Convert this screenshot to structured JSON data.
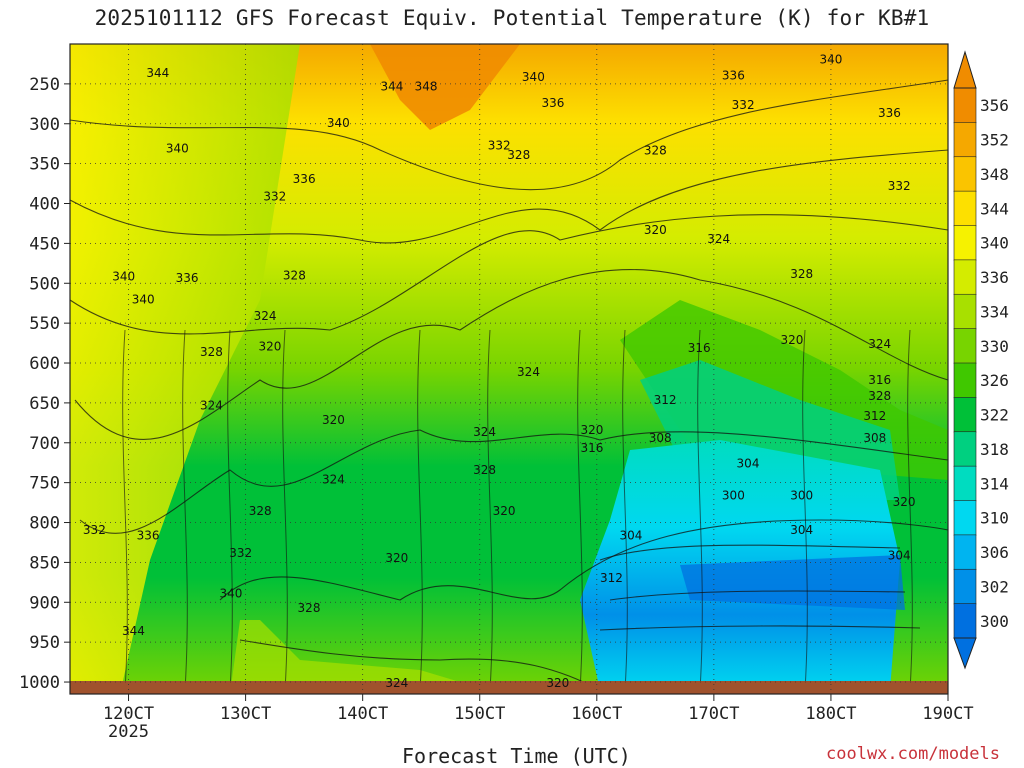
{
  "chart_data": {
    "type": "heatmap",
    "title": "2025101112 GFS Forecast Equiv. Potential Temperature (K) for KB#1",
    "xlabel": "Forecast Time (UTC)",
    "ylabel": "",
    "credit": "coolwx.com/models",
    "x_ticks": [
      {
        "label": "120CT",
        "sub": "2025",
        "hour": 0
      },
      {
        "label": "130CT",
        "sub": "",
        "hour": 24
      },
      {
        "label": "140CT",
        "sub": "",
        "hour": 48
      },
      {
        "label": "150CT",
        "sub": "",
        "hour": 72
      },
      {
        "label": "160CT",
        "sub": "",
        "hour": 96
      },
      {
        "label": "170CT",
        "sub": "",
        "hour": 120
      },
      {
        "label": "180CT",
        "sub": "",
        "hour": 144
      },
      {
        "label": "190CT",
        "sub": "",
        "hour": 168
      }
    ],
    "x_range_hours": [
      -12,
      168
    ],
    "y_ticks": [
      250,
      300,
      350,
      400,
      450,
      500,
      550,
      600,
      650,
      700,
      750,
      800,
      850,
      900,
      950,
      1000
    ],
    "y_range_hPa": [
      200,
      1015
    ],
    "colorbar": {
      "labels": [
        356,
        352,
        348,
        344,
        340,
        336,
        334,
        330,
        326,
        322,
        318,
        314,
        310,
        306,
        302,
        300
      ],
      "colors": [
        "#f08c00",
        "#f5a800",
        "#fac400",
        "#fde000",
        "#f6f200",
        "#d4ec00",
        "#a8e000",
        "#78d400",
        "#40c800",
        "#00c038",
        "#00d080",
        "#00dcc0",
        "#00d8f0",
        "#00b4f0",
        "#0090e8",
        "#0070e0"
      ]
    },
    "contour_labels": [
      {
        "text": "340",
        "hour": 144,
        "hPa": 218
      },
      {
        "text": "344",
        "hour": 6,
        "hPa": 235
      },
      {
        "text": "344",
        "hour": 54,
        "hPa": 252
      },
      {
        "text": "348",
        "hour": 61,
        "hPa": 252
      },
      {
        "text": "340",
        "hour": 83,
        "hPa": 240
      },
      {
        "text": "336",
        "hour": 124,
        "hPa": 238
      },
      {
        "text": "336",
        "hour": 87,
        "hPa": 273
      },
      {
        "text": "332",
        "hour": 126,
        "hPa": 275
      },
      {
        "text": "336",
        "hour": 156,
        "hPa": 285
      },
      {
        "text": "340",
        "hour": 43,
        "hPa": 298
      },
      {
        "text": "340",
        "hour": 10,
        "hPa": 330
      },
      {
        "text": "332",
        "hour": 76,
        "hPa": 326
      },
      {
        "text": "328",
        "hour": 80,
        "hPa": 338
      },
      {
        "text": "328",
        "hour": 108,
        "hPa": 332
      },
      {
        "text": "336",
        "hour": 36,
        "hPa": 368
      },
      {
        "text": "332",
        "hour": 30,
        "hPa": 390
      },
      {
        "text": "332",
        "hour": 158,
        "hPa": 377
      },
      {
        "text": "320",
        "hour": 108,
        "hPa": 432
      },
      {
        "text": "324",
        "hour": 121,
        "hPa": 443
      },
      {
        "text": "340",
        "hour": -1,
        "hPa": 490
      },
      {
        "text": "336",
        "hour": 12,
        "hPa": 492
      },
      {
        "text": "328",
        "hour": 34,
        "hPa": 489
      },
      {
        "text": "328",
        "hour": 138,
        "hPa": 487
      },
      {
        "text": "340",
        "hour": 3,
        "hPa": 519
      },
      {
        "text": "324",
        "hour": 28,
        "hPa": 540
      },
      {
        "text": "320",
        "hour": 29,
        "hPa": 578
      },
      {
        "text": "316",
        "hour": 117,
        "hPa": 580
      },
      {
        "text": "320",
        "hour": 136,
        "hPa": 570
      },
      {
        "text": "324",
        "hour": 154,
        "hPa": 575
      },
      {
        "text": "328",
        "hour": 17,
        "hPa": 585
      },
      {
        "text": "324",
        "hour": 82,
        "hPa": 610
      },
      {
        "text": "316",
        "hour": 154,
        "hPa": 620
      },
      {
        "text": "312",
        "hour": 110,
        "hPa": 645
      },
      {
        "text": "328",
        "hour": 154,
        "hPa": 640
      },
      {
        "text": "324",
        "hour": 17,
        "hPa": 652
      },
      {
        "text": "320",
        "hour": 42,
        "hPa": 670
      },
      {
        "text": "312",
        "hour": 153,
        "hPa": 665
      },
      {
        "text": "320",
        "hour": 95,
        "hPa": 683
      },
      {
        "text": "324",
        "hour": 73,
        "hPa": 685
      },
      {
        "text": "308",
        "hour": 109,
        "hPa": 693
      },
      {
        "text": "308",
        "hour": 153,
        "hPa": 693
      },
      {
        "text": "316",
        "hour": 95,
        "hPa": 705
      },
      {
        "text": "304",
        "hour": 127,
        "hPa": 725
      },
      {
        "text": "328",
        "hour": 73,
        "hPa": 733
      },
      {
        "text": "324",
        "hour": 42,
        "hPa": 745
      },
      {
        "text": "300",
        "hour": 124,
        "hPa": 765
      },
      {
        "text": "300",
        "hour": 138,
        "hPa": 765
      },
      {
        "text": "320",
        "hour": 159,
        "hPa": 773
      },
      {
        "text": "328",
        "hour": 27,
        "hPa": 784
      },
      {
        "text": "320",
        "hour": 77,
        "hPa": 784
      },
      {
        "text": "304",
        "hour": 138,
        "hPa": 808
      },
      {
        "text": "332",
        "hour": -7,
        "hPa": 808
      },
      {
        "text": "336",
        "hour": 4,
        "hPa": 815
      },
      {
        "text": "304",
        "hour": 103,
        "hPa": 815
      },
      {
        "text": "332",
        "hour": 23,
        "hPa": 837
      },
      {
        "text": "304",
        "hour": 158,
        "hPa": 840
      },
      {
        "text": "320",
        "hour": 55,
        "hPa": 843
      },
      {
        "text": "312",
        "hour": 99,
        "hPa": 868
      },
      {
        "text": "340",
        "hour": 21,
        "hPa": 888
      },
      {
        "text": "328",
        "hour": 37,
        "hPa": 906
      },
      {
        "text": "344",
        "hour": 1,
        "hPa": 935
      },
      {
        "text": "324",
        "hour": 55,
        "hPa": 1000
      },
      {
        "text": "320",
        "hour": 88,
        "hPa": 1000
      }
    ]
  }
}
